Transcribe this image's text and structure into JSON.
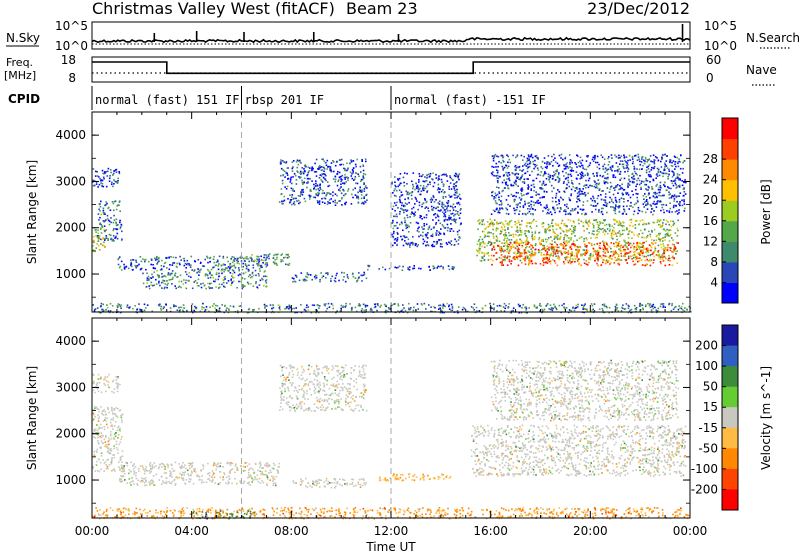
{
  "header": {
    "title": "Christmas Valley West (fitACF)",
    "beam": "Beam 23",
    "date": "23/Dec/2012"
  },
  "strips": {
    "nsky_label": "N.Sky",
    "nsky_top": "10^5",
    "nsky_bottom": "10^0",
    "nsearch_label": "N.Search",
    "nsearch_top": "10^5",
    "nsearch_bottom": "10^0",
    "freq_label": "Freq.",
    "freq_unit": "[MHz]",
    "freq_top": "18",
    "freq_bottom": "8",
    "nave_label": "Nave",
    "nave_top": "60",
    "nave_bottom": "0",
    "cpid_label": "CPID",
    "cpid_segments": [
      {
        "label": "normal (fast) 151 IF",
        "start_hour": 0,
        "end_hour": 6
      },
      {
        "label": "rbsp 201 IF",
        "start_hour": 6,
        "end_hour": 12
      },
      {
        "label": "normal (fast) -151 IF",
        "start_hour": 12,
        "end_hour": 24
      }
    ],
    "freq_steps": [
      {
        "start_hour": 0,
        "end_hour": 3,
        "level": 0.8
      },
      {
        "start_hour": 3,
        "end_hour": 15.3,
        "level": 0.35
      },
      {
        "start_hour": 15.3,
        "end_hour": 24,
        "level": 0.8
      }
    ]
  },
  "chart_data": [
    {
      "type": "heatmap",
      "name": "power",
      "ylabel": "Slant Range [km]",
      "xlabel": "Time UT",
      "xlim_hours": [
        0,
        24
      ],
      "ylim": [
        180,
        4500
      ],
      "yticks": [
        "1000",
        "2000",
        "3000",
        "4000"
      ],
      "xticks": [
        "00:00",
        "04:00",
        "08:00",
        "12:00",
        "16:00",
        "20:00",
        "00:00"
      ],
      "colorbar": {
        "label": "Power [dB]",
        "ticks": [
          "4",
          "8",
          "12",
          "16",
          "20",
          "24",
          "28"
        ],
        "colors": [
          "#0000ff",
          "#2a47b8",
          "#3f8a6d",
          "#55a84a",
          "#9ccc1f",
          "#ffc000",
          "#ff8a00",
          "#ff4000",
          "#ff0000"
        ]
      },
      "regions": [
        {
          "t0": 0.0,
          "t1": 0.5,
          "r0": 1500,
          "r1": 2000,
          "v": 0.55
        },
        {
          "t0": 0.2,
          "t1": 1.2,
          "r0": 1700,
          "r1": 2600,
          "v": 0.2
        },
        {
          "t0": 0.0,
          "t1": 1.1,
          "r0": 2900,
          "r1": 3300,
          "v": 0.1
        },
        {
          "t0": 1.0,
          "t1": 7.0,
          "r0": 1100,
          "r1": 1400,
          "v": 0.18
        },
        {
          "t0": 2.0,
          "t1": 7.0,
          "r0": 700,
          "r1": 1100,
          "v": 0.25
        },
        {
          "t0": 5.5,
          "t1": 8.0,
          "r0": 1200,
          "r1": 1450,
          "v": 0.3
        },
        {
          "t0": 7.5,
          "t1": 11.0,
          "r0": 2500,
          "r1": 3500,
          "v": 0.12
        },
        {
          "t0": 8.0,
          "t1": 11.0,
          "r0": 850,
          "r1": 1050,
          "v": 0.15
        },
        {
          "t0": 11.0,
          "t1": 14.5,
          "r0": 1100,
          "r1": 1200,
          "v": 0.18
        },
        {
          "t0": 12.0,
          "t1": 14.8,
          "r0": 1600,
          "r1": 3200,
          "v": 0.08
        },
        {
          "t0": 15.4,
          "t1": 23.5,
          "r0": 1300,
          "r1": 2200,
          "v": 0.45
        },
        {
          "t0": 16.0,
          "t1": 23.5,
          "r0": 1200,
          "r1": 1700,
          "v": 0.85
        },
        {
          "t0": 16.0,
          "t1": 23.8,
          "r0": 2300,
          "r1": 3600,
          "v": 0.1
        },
        {
          "t0": 0.0,
          "t1": 24.0,
          "r0": 180,
          "r1": 380,
          "v": 0.22
        }
      ]
    },
    {
      "type": "heatmap",
      "name": "velocity",
      "ylabel": "Slant Range [km]",
      "xlabel": "Time UT",
      "xlim_hours": [
        0,
        24
      ],
      "ylim": [
        180,
        4500
      ],
      "yticks": [
        "1000",
        "2000",
        "3000",
        "4000"
      ],
      "xticks": [
        "00:00",
        "04:00",
        "08:00",
        "12:00",
        "16:00",
        "20:00",
        "00:00"
      ],
      "colorbar": {
        "label": "Velocity [m s^-1]",
        "ticks": [
          "200",
          "100",
          "50",
          "15",
          "-15",
          "-50",
          "-100",
          "-200"
        ],
        "colors": [
          "#1a1aa0",
          "#2f5fc0",
          "#3c8c3c",
          "#66cc33",
          "#c8c8c0",
          "#ffbb44",
          "#ff8800",
          "#ff4400",
          "#ff0000"
        ]
      },
      "regions": [
        {
          "t0": 0.0,
          "t1": 1.2,
          "r0": 1200,
          "r1": 2600,
          "v": 0.0
        },
        {
          "t0": 0.0,
          "t1": 1.1,
          "r0": 2900,
          "r1": 3300,
          "v": 0.0
        },
        {
          "t0": 1.0,
          "t1": 7.5,
          "r0": 900,
          "r1": 1400,
          "v": 0.0
        },
        {
          "t0": 7.5,
          "t1": 11.0,
          "r0": 2500,
          "r1": 3500,
          "v": 0.0
        },
        {
          "t0": 8.0,
          "t1": 11.0,
          "r0": 850,
          "r1": 1050,
          "v": 0.0
        },
        {
          "t0": 11.5,
          "t1": 14.5,
          "r0": 1000,
          "r1": 1150,
          "v": -0.3
        },
        {
          "t0": 15.2,
          "t1": 23.8,
          "r0": 1100,
          "r1": 2200,
          "v": 0.0
        },
        {
          "t0": 16.0,
          "t1": 23.5,
          "r0": 2300,
          "r1": 3600,
          "v": 0.0
        },
        {
          "t0": 0.0,
          "t1": 24.0,
          "r0": 180,
          "r1": 420,
          "v": -0.4
        },
        {
          "t0": 4.0,
          "t1": 6.5,
          "r0": 180,
          "r1": 350,
          "v": 0.5
        }
      ]
    }
  ]
}
